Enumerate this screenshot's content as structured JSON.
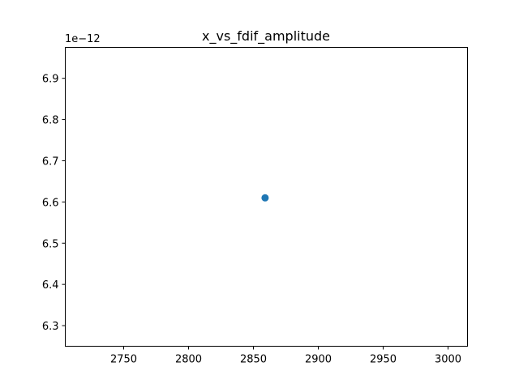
{
  "chart_data": {
    "type": "scatter",
    "title": "x_vs_fdif_amplitude",
    "xlabel": "",
    "ylabel": "",
    "y_offset_label": "1e−12",
    "xlim": [
      2705,
      3015
    ],
    "ylim": [
      6.25,
      6.975
    ],
    "x_ticks": [
      2750,
      2800,
      2850,
      2900,
      2950,
      3000
    ],
    "x_tick_labels": [
      "2750",
      "2800",
      "2850",
      "2900",
      "2950",
      "3000"
    ],
    "y_ticks": [
      6.3,
      6.4,
      6.5,
      6.6,
      6.7,
      6.8,
      6.9
    ],
    "y_tick_labels": [
      "6.3",
      "6.4",
      "6.5",
      "6.6",
      "6.7",
      "6.8",
      "6.9"
    ],
    "grid": false,
    "series": [
      {
        "color": "#1f77b4",
        "points": [
          {
            "x": 2859,
            "y": 6.61
          }
        ]
      }
    ]
  }
}
